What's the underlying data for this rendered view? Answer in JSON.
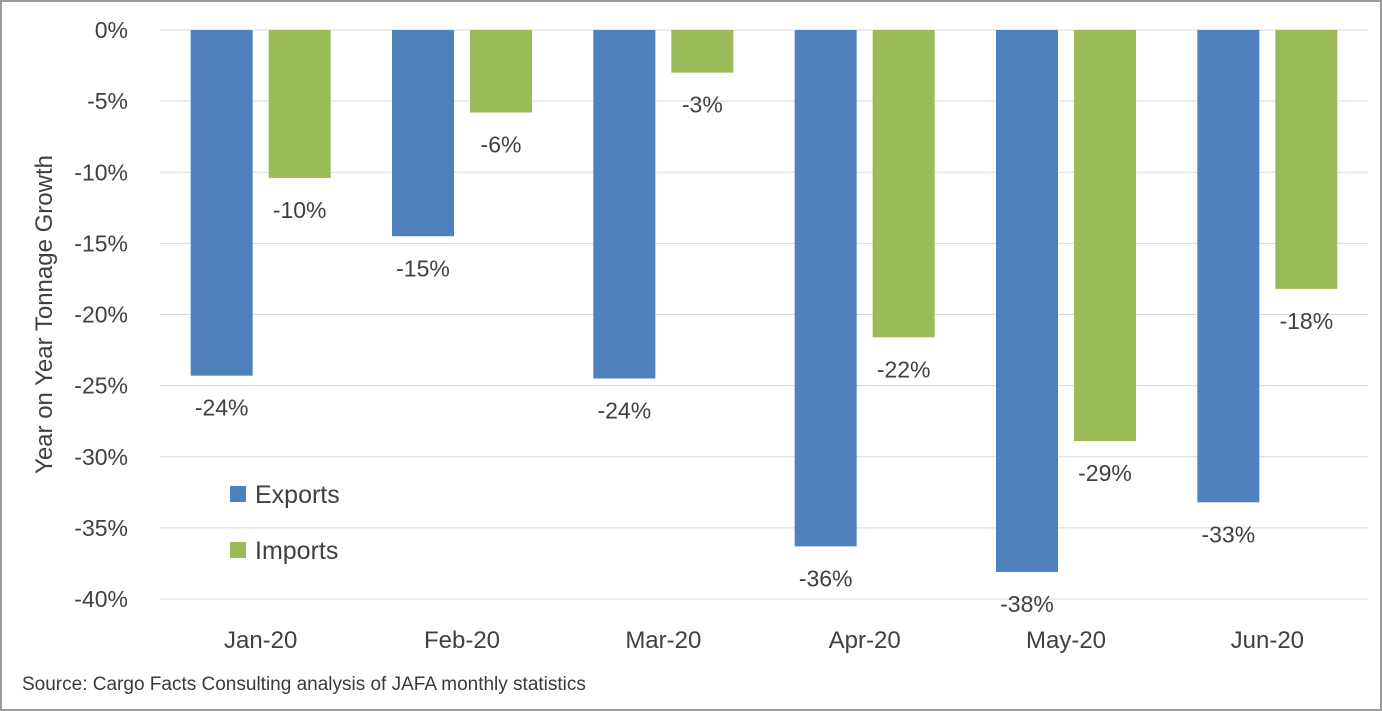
{
  "chart_data": {
    "type": "bar",
    "title": "",
    "xlabel": "",
    "ylabel": "Year on Year Tonnage Growth",
    "categories": [
      "Jan-20",
      "Feb-20",
      "Mar-20",
      "Apr-20",
      "May-20",
      "Jun-20"
    ],
    "series": [
      {
        "name": "Exports",
        "color": "#4f81bd",
        "values": [
          -24.3,
          -14.5,
          -24.5,
          -36.3,
          -38.1,
          -33.2
        ],
        "labels": [
          "-24%",
          "-15%",
          "-24%",
          "-36%",
          "-38%",
          "-33%"
        ]
      },
      {
        "name": "Imports",
        "color": "#9bbb59",
        "values": [
          -10.4,
          -5.8,
          -3.0,
          -21.6,
          -28.9,
          -18.2
        ],
        "labels": [
          "-10%",
          "-6%",
          "-3%",
          "-22%",
          "-29%",
          "-18%"
        ]
      }
    ],
    "ylim": [
      -40,
      0
    ],
    "yticks": [
      "0%",
      "-5%",
      "-10%",
      "-15%",
      "-20%",
      "-25%",
      "-30%",
      "-35%",
      "-40%"
    ],
    "grid": true,
    "legend_position": "bottom-left"
  },
  "source": "Source: Cargo Facts Consulting analysis of JAFA monthly statistics"
}
